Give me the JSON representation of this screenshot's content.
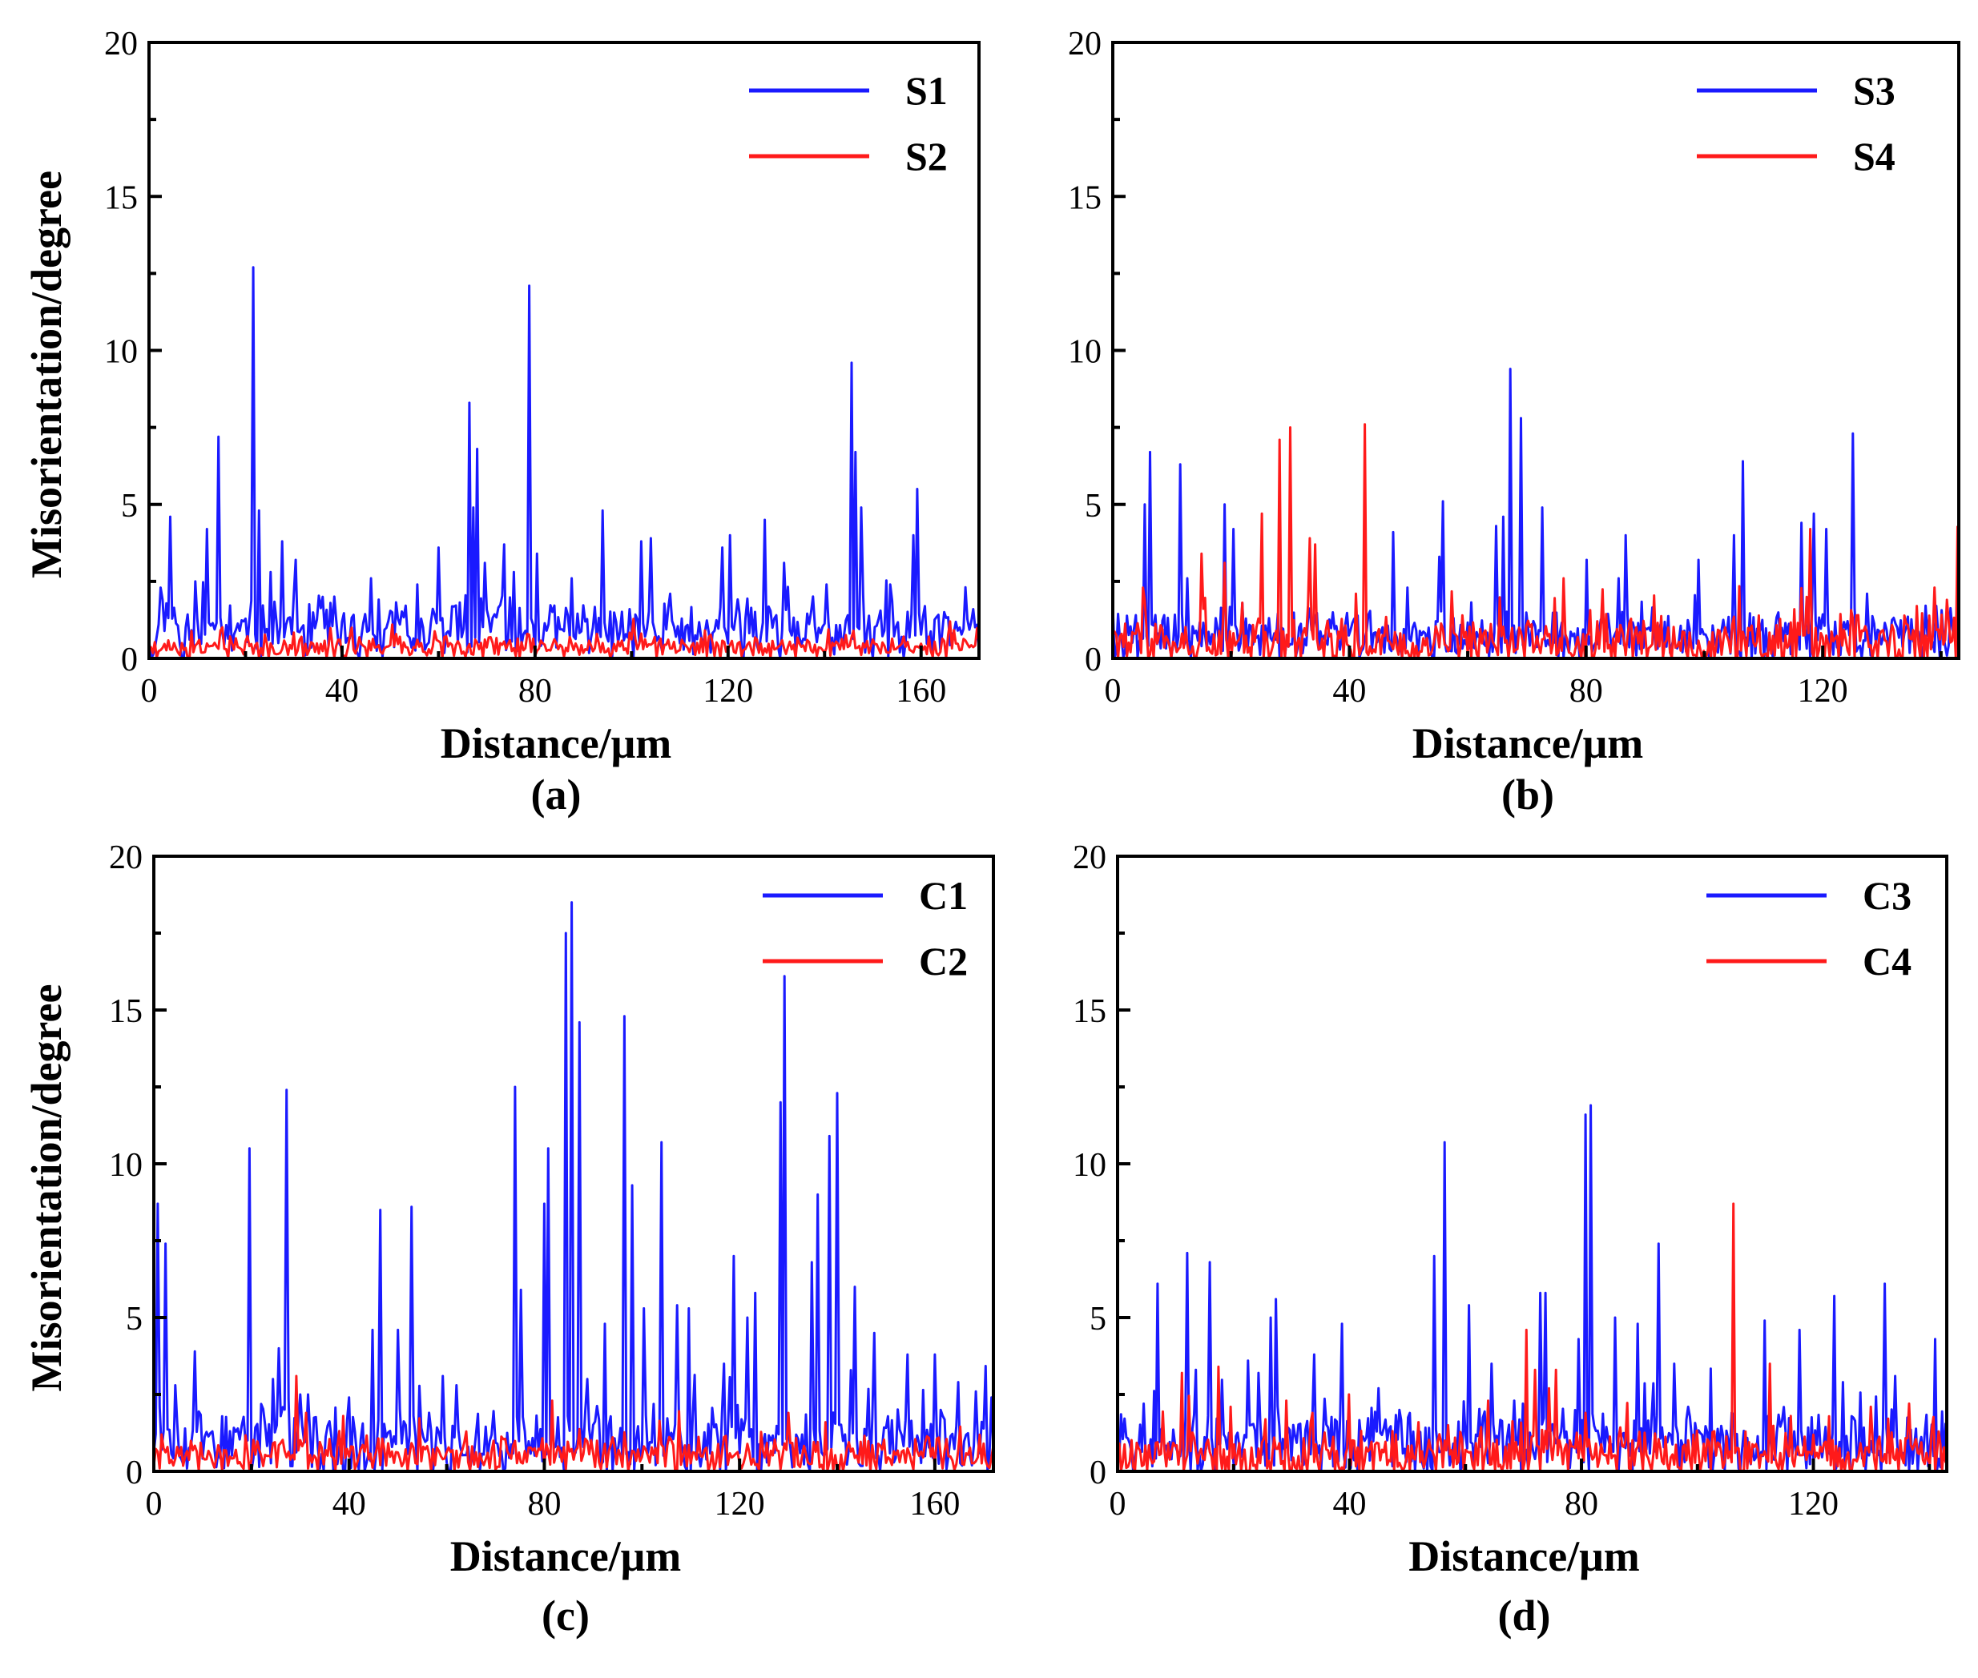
{
  "figure": {
    "description_panels": [
      "(a)",
      "(b)",
      "(c)",
      "(d)"
    ]
  },
  "colors": {
    "blue": "#1a1aff",
    "red": "#ff1a1a",
    "axis": "#000000"
  },
  "chart_data": [
    {
      "type": "line",
      "panel_label": "(a)",
      "xlabel": "Distance/μm",
      "ylabel": "Misorientation/degree",
      "xlim": [
        0,
        172
      ],
      "ylim": [
        0,
        20
      ],
      "x_ticks": [
        0,
        40,
        80,
        120,
        160
      ],
      "y_ticks": [
        0,
        5,
        10,
        15,
        20
      ],
      "legend_position": "top-right",
      "series": [
        {
          "name": "S1",
          "color": "#1a1aff",
          "baseline": 0.9,
          "noise": 0.8,
          "seed": 11,
          "step": 0.4,
          "peaks": [
            [
              2.5,
              2.3
            ],
            [
              4.2,
              4.6
            ],
            [
              9.5,
              2.5
            ],
            [
              12.0,
              4.2
            ],
            [
              14.6,
              7.2
            ],
            [
              21.5,
              12.7
            ],
            [
              22.8,
              4.8
            ],
            [
              25.0,
              2.8
            ],
            [
              27.6,
              3.8
            ],
            [
              30.5,
              3.2
            ],
            [
              36.0,
              2.0
            ],
            [
              45.8,
              2.6
            ],
            [
              55.5,
              2.4
            ],
            [
              59.8,
              3.6
            ],
            [
              66.3,
              8.3
            ],
            [
              67.0,
              4.9
            ],
            [
              68.1,
              6.8
            ],
            [
              69.6,
              3.1
            ],
            [
              73.6,
              3.7
            ],
            [
              75.5,
              2.8
            ],
            [
              78.7,
              12.1
            ],
            [
              80.4,
              3.4
            ],
            [
              87.5,
              2.6
            ],
            [
              94.2,
              4.8
            ],
            [
              102.0,
              3.8
            ],
            [
              104.2,
              3.9
            ],
            [
              108.0,
              2.1
            ],
            [
              118.8,
              3.6
            ],
            [
              120.5,
              4.0
            ],
            [
              127.5,
              4.5
            ],
            [
              131.5,
              3.1
            ],
            [
              140.5,
              2.4
            ],
            [
              145.8,
              9.6
            ],
            [
              146.5,
              6.7
            ],
            [
              147.6,
              4.9
            ],
            [
              153.5,
              2.4
            ],
            [
              158.5,
              4.0
            ],
            [
              159.4,
              5.5
            ],
            [
              165.0,
              1.5
            ],
            [
              171.0,
              1.6
            ]
          ]
        },
        {
          "name": "S2",
          "color": "#ff1a1a",
          "baseline": 0.35,
          "noise": 0.3,
          "seed": 23,
          "step": 0.4,
          "peaks": [
            [
              15.0,
              0.9
            ],
            [
              78.5,
              0.8
            ],
            [
              146.0,
              0.9
            ],
            [
              166.0,
              1.2
            ]
          ]
        }
      ]
    },
    {
      "type": "line",
      "panel_label": "(b)",
      "xlabel": "Distance/μm",
      "ylabel": "",
      "xlim": [
        0,
        143
      ],
      "ylim": [
        0,
        20
      ],
      "x_ticks": [
        0,
        40,
        80,
        120
      ],
      "y_ticks": [
        0,
        5,
        10,
        15,
        20
      ],
      "legend_position": "top-right",
      "series": [
        {
          "name": "S3",
          "color": "#1a1aff",
          "baseline": 0.7,
          "noise": 0.7,
          "seed": 31,
          "step": 0.3,
          "peaks": [
            [
              5.5,
              5.0
            ],
            [
              6.2,
              6.7
            ],
            [
              11.4,
              6.3
            ],
            [
              12.5,
              2.6
            ],
            [
              18.9,
              5.0
            ],
            [
              20.5,
              4.2
            ],
            [
              22.0,
              1.8
            ],
            [
              47.5,
              4.1
            ],
            [
              49.8,
              2.3
            ],
            [
              55.3,
              3.3
            ],
            [
              55.9,
              5.1
            ],
            [
              64.8,
              4.3
            ],
            [
              66.0,
              4.6
            ],
            [
              67.2,
              9.4
            ],
            [
              69.0,
              7.8
            ],
            [
              72.5,
              4.9
            ],
            [
              80.0,
              3.2
            ],
            [
              85.5,
              2.6
            ],
            [
              86.6,
              4.0
            ],
            [
              99.0,
              3.2
            ],
            [
              106.6,
              6.4
            ],
            [
              105.0,
              4.0
            ],
            [
              116.5,
              4.4
            ],
            [
              118.6,
              4.7
            ],
            [
              120.5,
              4.2
            ],
            [
              125.0,
              7.3
            ],
            [
              127.5,
              2.1
            ]
          ]
        },
        {
          "name": "S4",
          "color": "#ff1a1a",
          "baseline": 0.5,
          "noise": 0.7,
          "seed": 47,
          "step": 0.3,
          "peaks": [
            [
              5.0,
              2.3
            ],
            [
              15.1,
              3.4
            ],
            [
              19.0,
              3.1
            ],
            [
              25.2,
              4.7
            ],
            [
              28.2,
              7.1
            ],
            [
              30.0,
              7.5
            ],
            [
              33.4,
              3.9
            ],
            [
              34.2,
              3.7
            ],
            [
              42.6,
              7.6
            ],
            [
              41.0,
              2.1
            ],
            [
              59.0,
              1.4
            ],
            [
              76.3,
              2.6
            ],
            [
              117.8,
              4.2
            ],
            [
              136.0,
              1.7
            ],
            [
              139.0,
              2.3
            ],
            [
              141.0,
              1.9
            ],
            [
              142.8,
              4.3
            ]
          ]
        }
      ]
    },
    {
      "type": "line",
      "panel_label": "(c)",
      "xlabel": "Distance/μm",
      "ylabel": "Misorientation/degree",
      "xlim": [
        0,
        172
      ],
      "ylim": [
        0,
        20
      ],
      "x_ticks": [
        0,
        40,
        80,
        120,
        160
      ],
      "y_ticks": [
        0,
        5,
        10,
        15,
        20
      ],
      "legend_position": "top-right",
      "series": [
        {
          "name": "C1",
          "color": "#1a1aff",
          "baseline": 0.9,
          "noise": 1.0,
          "seed": 53,
          "step": 0.4,
          "peaks": [
            [
              0.8,
              8.7
            ],
            [
              2.2,
              7.4
            ],
            [
              4.2,
              2.8
            ],
            [
              8.4,
              3.9
            ],
            [
              19.6,
              10.5
            ],
            [
              24.2,
              3.0
            ],
            [
              25.5,
              4.0
            ],
            [
              27.1,
              12.4
            ],
            [
              29.8,
              2.5
            ],
            [
              31.5,
              2.5
            ],
            [
              39.8,
              2.4
            ],
            [
              44.7,
              4.6
            ],
            [
              46.2,
              8.5
            ],
            [
              49.8,
              4.6
            ],
            [
              52.8,
              8.6
            ],
            [
              59.0,
              3.1
            ],
            [
              61.8,
              2.8
            ],
            [
              73.9,
              12.5
            ],
            [
              75.0,
              5.9
            ],
            [
              80.0,
              8.7
            ],
            [
              81.0,
              10.5
            ],
            [
              84.3,
              17.5
            ],
            [
              85.6,
              18.5
            ],
            [
              87.2,
              14.6
            ],
            [
              89.0,
              3.0
            ],
            [
              92.5,
              4.8
            ],
            [
              96.6,
              14.8
            ],
            [
              98.2,
              9.3
            ],
            [
              100.5,
              5.3
            ],
            [
              103.9,
              10.7
            ],
            [
              107.2,
              5.4
            ],
            [
              109.8,
              5.3
            ],
            [
              118.8,
              7.0
            ],
            [
              121.5,
              5.0
            ],
            [
              123.3,
              5.8
            ],
            [
              128.5,
              12.0
            ],
            [
              129.3,
              16.1
            ],
            [
              134.8,
              6.8
            ],
            [
              136.1,
              9.0
            ],
            [
              138.5,
              10.9
            ],
            [
              140.0,
              12.3
            ],
            [
              143.5,
              6.0
            ],
            [
              147.7,
              4.5
            ],
            [
              154.3,
              3.8
            ],
            [
              160.0,
              3.8
            ],
            [
              164.7,
              2.9
            ],
            [
              168.5,
              2.6
            ],
            [
              171.5,
              2.4
            ]
          ]
        },
        {
          "name": "C2",
          "color": "#ff1a1a",
          "baseline": 0.5,
          "noise": 0.5,
          "seed": 61,
          "step": 0.4,
          "peaks": [
            [
              1.5,
              1.2
            ],
            [
              29.0,
              3.1
            ],
            [
              31.0,
              1.9
            ],
            [
              38.8,
              1.8
            ],
            [
              64.0,
              1.3
            ],
            [
              81.5,
              2.3
            ],
            [
              130.0,
              1.9
            ],
            [
              137.5,
              1.6
            ],
            [
              161.0,
              1.1
            ],
            [
              170.0,
              0.9
            ]
          ]
        }
      ]
    },
    {
      "type": "line",
      "panel_label": "(d)",
      "xlabel": "Distance/μm",
      "ylabel": "",
      "xlim": [
        0,
        143
      ],
      "ylim": [
        0,
        20
      ],
      "x_ticks": [
        0,
        40,
        80,
        120
      ],
      "y_ticks": [
        0,
        5,
        10,
        15,
        20
      ],
      "legend_position": "top-right",
      "series": [
        {
          "name": "C3",
          "color": "#1a1aff",
          "baseline": 0.9,
          "noise": 0.9,
          "seed": 71,
          "step": 0.3,
          "peaks": [
            [
              4.5,
              2.2
            ],
            [
              6.8,
              6.1
            ],
            [
              11.9,
              7.1
            ],
            [
              13.5,
              3.3
            ],
            [
              15.8,
              6.8
            ],
            [
              22.5,
              3.6
            ],
            [
              24.3,
              3.2
            ],
            [
              26.5,
              5.0
            ],
            [
              27.3,
              5.6
            ],
            [
              33.8,
              3.8
            ],
            [
              38.6,
              4.8
            ],
            [
              45.0,
              2.7
            ],
            [
              54.5,
              7.0
            ],
            [
              56.5,
              10.7
            ],
            [
              60.5,
              5.4
            ],
            [
              64.5,
              3.5
            ],
            [
              68.5,
              2.3
            ],
            [
              73.0,
              5.8
            ],
            [
              73.8,
              5.8
            ],
            [
              79.5,
              4.3
            ],
            [
              80.8,
              11.6
            ],
            [
              81.6,
              11.9
            ],
            [
              85.8,
              5.0
            ],
            [
              89.6,
              4.8
            ],
            [
              93.2,
              7.4
            ],
            [
              96.0,
              3.5
            ],
            [
              98.5,
              2.1
            ],
            [
              111.7,
              4.9
            ],
            [
              117.5,
              4.6
            ],
            [
              123.5,
              5.7
            ],
            [
              125.0,
              2.9
            ],
            [
              132.3,
              6.1
            ],
            [
              134.0,
              3.1
            ],
            [
              141.0,
              4.3
            ]
          ]
        },
        {
          "name": "C4",
          "color": "#ff1a1a",
          "baseline": 0.5,
          "noise": 0.7,
          "seed": 83,
          "step": 0.3,
          "peaks": [
            [
              11.0,
              3.2
            ],
            [
              17.5,
              3.4
            ],
            [
              19.5,
              2.1
            ],
            [
              29.0,
              2.3
            ],
            [
              33.5,
              1.9
            ],
            [
              39.8,
              2.5
            ],
            [
              52.0,
              1.6
            ],
            [
              64.0,
              2.3
            ],
            [
              70.5,
              4.6
            ],
            [
              72.0,
              3.3
            ],
            [
              74.5,
              2.7
            ],
            [
              75.5,
              3.3
            ],
            [
              106.2,
              8.7
            ],
            [
              112.5,
              3.5
            ],
            [
              116.0,
              1.8
            ],
            [
              130.0,
              2.1
            ],
            [
              136.5,
              2.2
            ],
            [
              141.5,
              1.3
            ]
          ]
        }
      ]
    }
  ]
}
